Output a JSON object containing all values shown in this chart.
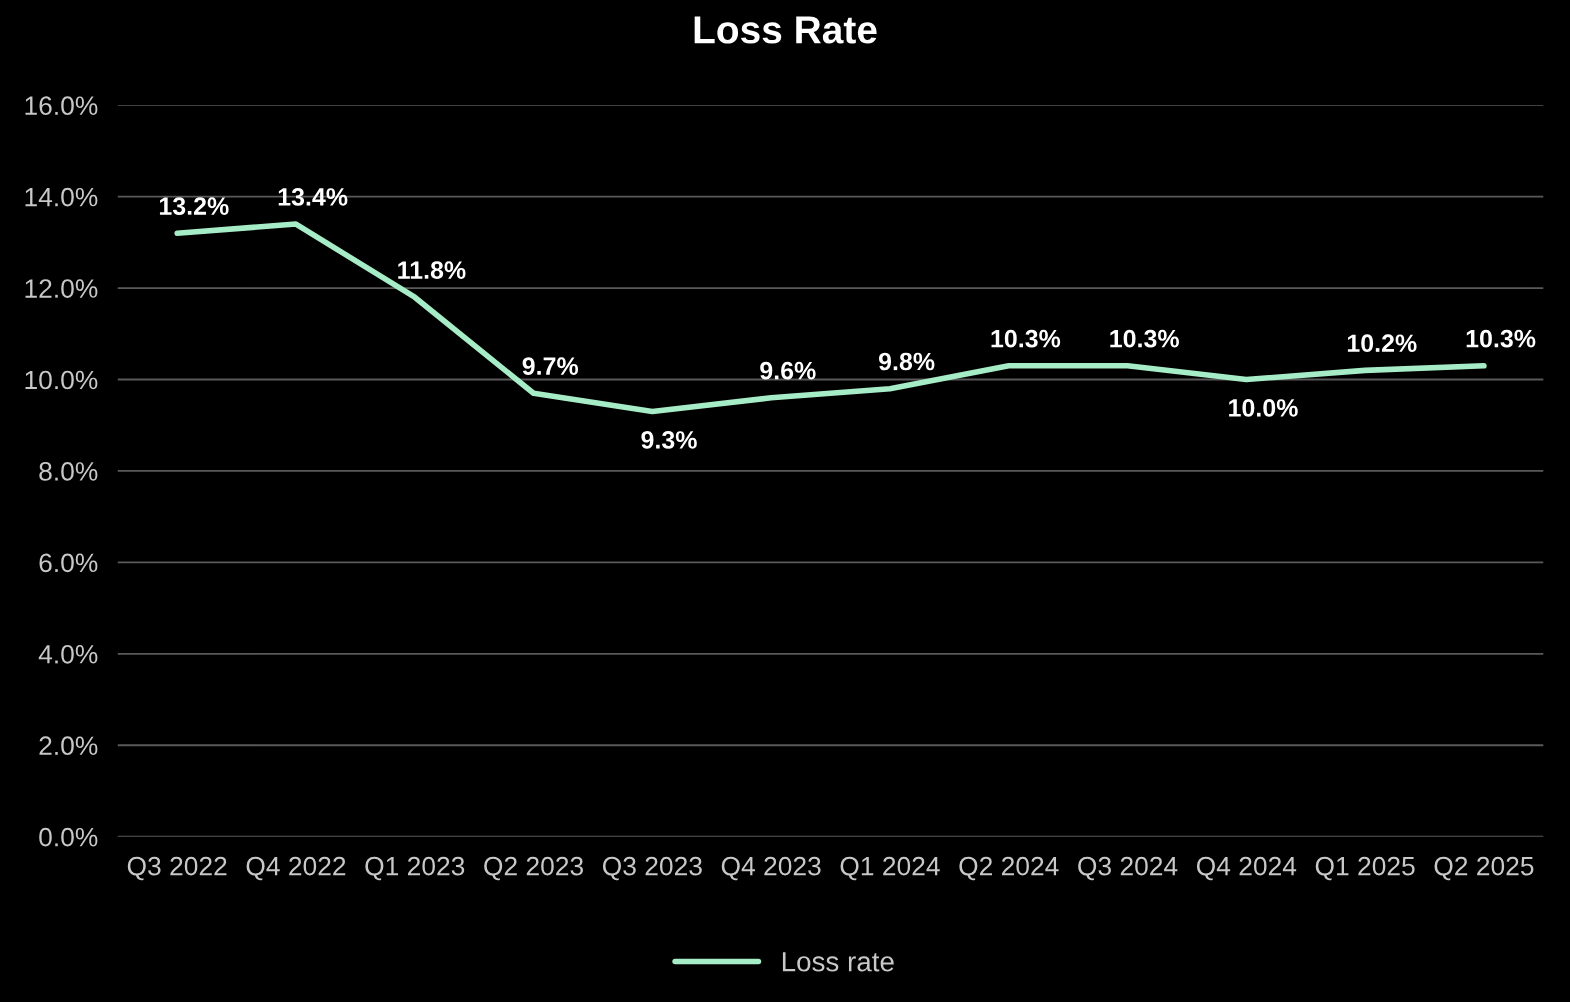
{
  "chart_data": {
    "type": "line",
    "title": "Loss Rate",
    "categories": [
      "Q3 2022",
      "Q4 2022",
      "Q1 2023",
      "Q2 2023",
      "Q3 2023",
      "Q4 2023",
      "Q1 2024",
      "Q2 2024",
      "Q3 2024",
      "Q4 2024",
      "Q1 2025",
      "Q2 2025"
    ],
    "series": [
      {
        "name": "Loss rate",
        "color": "#a6ecc6",
        "values": [
          13.2,
          13.4,
          11.8,
          9.7,
          9.3,
          9.6,
          9.8,
          10.3,
          10.3,
          10.0,
          10.2,
          10.3
        ],
        "value_labels": [
          "13.2%",
          "13.4%",
          "11.8%",
          "9.7%",
          "9.3%",
          "9.6%",
          "9.8%",
          "10.3%",
          "10.3%",
          "10.0%",
          "10.2%",
          "10.3%"
        ]
      }
    ],
    "ylim": [
      0,
      16
    ],
    "yticks": [
      {
        "value": 0,
        "label": "0.0%"
      },
      {
        "value": 2,
        "label": "2.0%"
      },
      {
        "value": 4,
        "label": "4.0%"
      },
      {
        "value": 6,
        "label": "6.0%"
      },
      {
        "value": 8,
        "label": "8.0%"
      },
      {
        "value": 10,
        "label": "10.0%"
      },
      {
        "value": 12,
        "label": "12.0%"
      },
      {
        "value": 14,
        "label": "14.0%"
      },
      {
        "value": 16,
        "label": "16.0%"
      }
    ],
    "grid": "y",
    "legend": "bottom",
    "marker": "none",
    "line_style": "solid"
  }
}
